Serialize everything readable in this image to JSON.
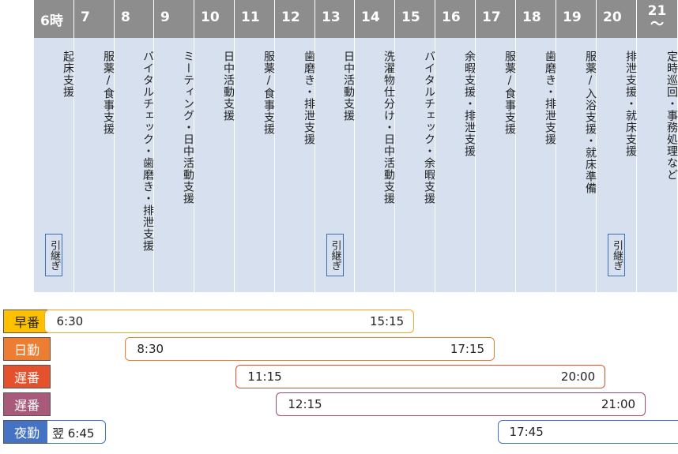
{
  "hours": [
    "6時",
    "7",
    "8",
    "9",
    "10",
    "11",
    "12",
    "13",
    "14",
    "15",
    "16",
    "17",
    "18",
    "19",
    "20",
    "21\n〜"
  ],
  "activities": [
    "起床支援",
    "服薬/食事支援",
    "バイタルチェック・歯磨き・排泄支援",
    "ミーティング・日中活動支援",
    "日中活動支援",
    "服薬/食事支援",
    "歯磨き・排泄支援",
    "日中活動支援",
    "洗濯物仕分け・日中活動支援",
    "バイタルチェック・余暇支援",
    "余暇支援・排泄支援",
    "服薬/食事支援",
    "歯磨き・排泄支援",
    "服薬/入浴支援・就床準備",
    "排泄支援・就床支援",
    "定時巡回・事務処理など"
  ],
  "handover_label": "引継ぎ",
  "handover_columns": [
    0,
    7,
    14
  ],
  "shifts": [
    {
      "name": "早番",
      "start": "6:30",
      "end": "15:15",
      "color": "#f5a623",
      "fill": "#ffc000"
    },
    {
      "name": "日勤",
      "start": "8:30",
      "end": "17:15",
      "color": "#ed7d31",
      "fill": "#ed7d31"
    },
    {
      "name": "遅番",
      "start": "11:15",
      "end": "20:00",
      "color": "#d9512c",
      "fill": "#e4512c"
    },
    {
      "name": "遅番",
      "start": "12:15",
      "end": "21:00",
      "color": "#a04a6d",
      "fill": "#a95a7a"
    },
    {
      "name": "夜勤",
      "start": "17:45",
      "end": "翌 6:45",
      "color": "#4472c4",
      "fill": "#4472c4"
    }
  ]
}
